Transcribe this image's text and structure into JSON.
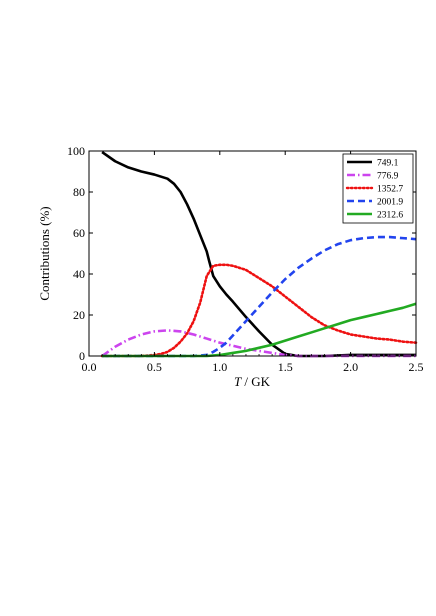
{
  "chart_data": {
    "type": "line",
    "title": "",
    "xlabel_italic": "T",
    "xlabel_rest": " / GK",
    "ylabel": "Contributions (%)",
    "xlim": [
      0.0,
      2.5
    ],
    "ylim": [
      0,
      100
    ],
    "xticks": [
      0.0,
      0.5,
      1.0,
      1.5,
      2.0,
      2.5
    ],
    "xtick_labels": [
      "0.0",
      "0.5",
      "1.0",
      "1.5",
      "2.0",
      "2.5"
    ],
    "yticks": [
      0,
      20,
      40,
      60,
      80,
      100
    ],
    "ytick_labels": [
      "0",
      "20",
      "40",
      "60",
      "80",
      "100"
    ],
    "grid": false,
    "legend_position": "top-right",
    "series": [
      {
        "name": "749.1",
        "color": "#000000",
        "dash": "solid",
        "x": [
          0.1,
          0.2,
          0.3,
          0.4,
          0.5,
          0.6,
          0.65,
          0.7,
          0.75,
          0.8,
          0.85,
          0.9,
          0.92,
          0.95,
          1.0,
          1.05,
          1.1,
          1.2,
          1.3,
          1.4,
          1.5,
          1.6,
          1.8,
          2.0,
          2.5
        ],
        "y": [
          99.5,
          95,
          92,
          90,
          88.5,
          86.5,
          84,
          80,
          74,
          67,
          59,
          51,
          46,
          39,
          34,
          30,
          26.5,
          19,
          12,
          5.5,
          1,
          0,
          0,
          0.5,
          0.5
        ]
      },
      {
        "name": "776.9",
        "color": "#cc44ee",
        "dash": "dashdot",
        "x": [
          0.1,
          0.2,
          0.3,
          0.4,
          0.5,
          0.6,
          0.7,
          0.8,
          0.9,
          1.0,
          1.1,
          1.2,
          1.3,
          1.4,
          1.5,
          1.6,
          2.0,
          2.5
        ],
        "y": [
          0,
          4.5,
          8,
          10.5,
          12,
          12.5,
          12,
          10.5,
          8.5,
          6.5,
          5,
          3.5,
          2.5,
          1.5,
          0.5,
          0,
          0,
          0
        ]
      },
      {
        "name": "1352.7",
        "color": "#ee1111",
        "dash": "dotted",
        "x": [
          0.1,
          0.4,
          0.5,
          0.55,
          0.6,
          0.65,
          0.7,
          0.75,
          0.8,
          0.85,
          0.9,
          0.95,
          1.0,
          1.05,
          1.1,
          1.2,
          1.3,
          1.4,
          1.5,
          1.6,
          1.7,
          1.8,
          1.9,
          2.0,
          2.1,
          2.2,
          2.3,
          2.4,
          2.5
        ],
        "y": [
          0,
          0,
          0.5,
          1,
          2,
          4,
          7,
          11,
          17,
          26,
          39,
          44,
          44.5,
          44.5,
          44,
          42,
          38,
          34,
          29,
          24,
          19,
          15,
          12.5,
          10.5,
          9.5,
          8.5,
          8,
          7,
          6.5
        ]
      },
      {
        "name": "2001.9",
        "color": "#2244ee",
        "dash": "dashed",
        "x": [
          0.1,
          0.8,
          0.9,
          0.95,
          1.0,
          1.05,
          1.1,
          1.2,
          1.3,
          1.4,
          1.5,
          1.6,
          1.7,
          1.8,
          1.9,
          2.0,
          2.1,
          2.2,
          2.3,
          2.4,
          2.5
        ],
        "y": [
          0,
          0,
          0.5,
          2,
          4,
          6.5,
          10,
          17,
          24,
          31,
          37.5,
          43,
          47.5,
          51.5,
          54.5,
          56.5,
          57.5,
          58,
          58,
          57.5,
          57
        ]
      },
      {
        "name": "2312.6",
        "color": "#22aa22",
        "dash": "solid",
        "x": [
          0.1,
          0.9,
          1.0,
          1.1,
          1.2,
          1.3,
          1.4,
          1.5,
          1.6,
          1.7,
          1.8,
          1.9,
          2.0,
          2.1,
          2.2,
          2.3,
          2.4,
          2.5
        ],
        "y": [
          0,
          0,
          0.5,
          1.5,
          2.5,
          4,
          5.5,
          7.5,
          9.5,
          11.5,
          13.5,
          15.5,
          17.5,
          19,
          20.5,
          22,
          23.5,
          25.5
        ]
      }
    ]
  }
}
